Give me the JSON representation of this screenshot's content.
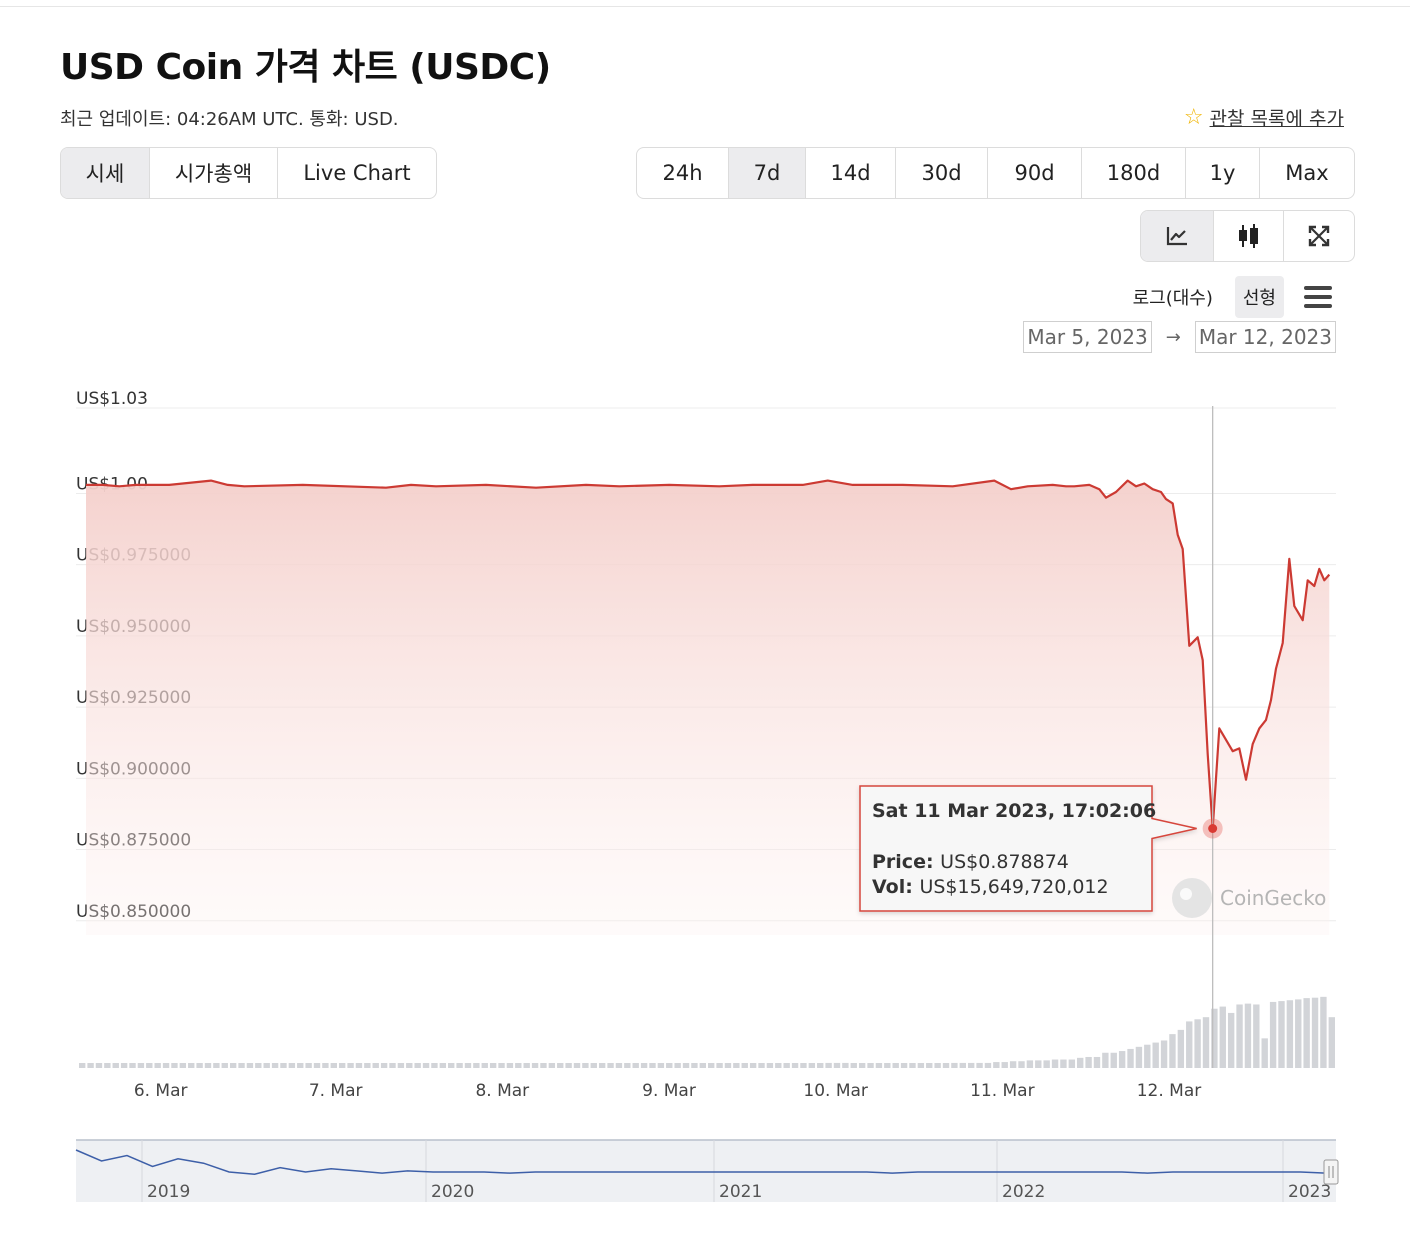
{
  "page": {
    "title": "USD Coin 가격 차트 (USDC)",
    "last_update": "최근 업데이트: 04:26AM UTC. 통화: USD.",
    "watchlist_label": "관찰 목록에 추가"
  },
  "view_tabs": [
    {
      "label": "시세",
      "active": true
    },
    {
      "label": "시가총액",
      "active": false
    },
    {
      "label": "Live Chart",
      "active": false
    }
  ],
  "range_tabs": [
    {
      "label": "24h",
      "active": false
    },
    {
      "label": "7d",
      "active": true
    },
    {
      "label": "14d",
      "active": false
    },
    {
      "label": "30d",
      "active": false
    },
    {
      "label": "90d",
      "active": false
    },
    {
      "label": "180d",
      "active": false
    },
    {
      "label": "1y",
      "active": false
    },
    {
      "label": "Max",
      "active": false
    }
  ],
  "chart_type_buttons": [
    {
      "icon": "line-chart-icon",
      "active": true
    },
    {
      "icon": "candlestick-icon",
      "active": false
    },
    {
      "icon": "expand-icon",
      "active": false
    }
  ],
  "scale": {
    "log_label": "로그(대수)",
    "linear_label": "선형",
    "active": "linear"
  },
  "date_range": {
    "from": "Mar 5, 2023",
    "to": "Mar 12, 2023",
    "arrow": "→"
  },
  "colors": {
    "line": "#cc3a33",
    "fill_top": "#f4cfcb",
    "volume": "#d2d4d8",
    "navigator": "#3d5fa8"
  },
  "watermark": "CoinGecko",
  "tooltip": {
    "date": "Sat 11 Mar 2023, 17:02:06",
    "price_label": "Price:",
    "price": "US$0.878874",
    "vol_label": "Vol:",
    "vol": "US$15,649,720,012"
  },
  "chart_data": {
    "type": "area",
    "series": [
      {
        "x": [
          5.0,
          5.1,
          5.2,
          5.3,
          5.5,
          5.75,
          5.85,
          5.95,
          6.3,
          6.8,
          6.95,
          7.1,
          7.4,
          7.7,
          8.0,
          8.2,
          8.5,
          8.8,
          9.0,
          9.3,
          9.45,
          9.6,
          9.9,
          10.2,
          10.45,
          10.55,
          10.65,
          10.8,
          10.88,
          10.93,
          11.02,
          11.08,
          11.12,
          11.18,
          11.25,
          11.3,
          11.35,
          11.4,
          11.45,
          11.48,
          11.52,
          11.55,
          11.58,
          11.62,
          11.67,
          11.7,
          11.73,
          11.76,
          11.8,
          11.84,
          11.88,
          11.92,
          11.96,
          12.0,
          12.04,
          12.08,
          12.11,
          12.14,
          12.18,
          12.22,
          12.25,
          12.3,
          12.33,
          12.37,
          12.4,
          12.43,
          12.46
        ],
        "y": [
          0.9995,
          0.9995,
          0.999,
          0.9995,
          0.9995,
          1.001,
          0.9995,
          0.999,
          0.9995,
          0.9985,
          0.9995,
          0.999,
          0.9995,
          0.9985,
          0.9995,
          0.999,
          0.9995,
          0.999,
          0.9995,
          0.9995,
          1.001,
          0.9995,
          0.9995,
          0.999,
          1.001,
          0.998,
          0.999,
          0.9995,
          0.999,
          0.999,
          0.9995,
          0.998,
          0.995,
          0.997,
          1.001,
          0.999,
          1.0,
          0.998,
          0.997,
          0.9945,
          0.993,
          0.982,
          0.977,
          0.943,
          0.946,
          0.938,
          0.905,
          0.878874,
          0.914,
          0.91,
          0.906,
          0.907,
          0.896,
          0.9085,
          0.914,
          0.917,
          0.924,
          0.935,
          0.944,
          0.9735,
          0.957,
          0.952,
          0.966,
          0.964,
          0.97,
          0.966,
          0.968
        ],
        "volume": [
          0.6,
          0.6,
          0.6,
          0.6,
          0.6,
          0.7,
          0.6,
          0.6,
          0.7,
          0.8,
          0.8,
          0.9,
          0.9,
          1.0,
          1.1,
          1.0,
          1.0,
          0.9,
          1.0,
          1.0,
          1.2,
          1.1,
          1.1,
          1.2,
          1.4,
          1.6,
          1.8,
          2.0,
          2.0,
          2.4,
          2.6,
          3.2,
          3.6,
          4.0,
          4.5,
          5.0,
          5.5,
          6.0,
          6.5,
          7.0,
          8.0,
          9.0,
          10.0,
          11.0,
          11.5,
          12.0,
          12.5,
          14.0,
          14.5,
          13.0,
          13.5,
          15.0,
          15.2,
          15.0,
          7.0,
          15.2,
          15.6,
          15.8,
          16.0,
          16.0,
          16.2,
          16.5,
          16.4,
          16.6,
          16.8,
          16.5,
          12.0
        ]
      }
    ],
    "xlabel": "",
    "ylabel": "",
    "ylim": [
      0.845,
      1.03
    ],
    "y_ticks": [
      {
        "value": 1.03,
        "label": "US$1.03"
      },
      {
        "value": 1.0,
        "label": "US$1.00"
      },
      {
        "value": 0.975,
        "label": "US$0.975000"
      },
      {
        "value": 0.95,
        "label": "US$0.950000"
      },
      {
        "value": 0.925,
        "label": "US$0.925000"
      },
      {
        "value": 0.9,
        "label": "US$0.900000"
      },
      {
        "value": 0.875,
        "label": "US$0.875000"
      },
      {
        "value": 0.85,
        "label": "US$0.850000"
      }
    ],
    "x_ticks": [
      {
        "value": 5.4,
        "label": "6. Mar"
      },
      {
        "value": 6.45,
        "label": "7. Mar"
      },
      {
        "value": 7.45,
        "label": "8. Mar"
      },
      {
        "value": 8.45,
        "label": "9. Mar"
      },
      {
        "value": 9.45,
        "label": "10. Mar"
      },
      {
        "value": 10.45,
        "label": "11. Mar"
      },
      {
        "value": 11.45,
        "label": "12. Mar"
      }
    ],
    "xlim": [
      5.0,
      12.5
    ],
    "highlight": {
      "x": 11.76,
      "y": 0.878874
    },
    "grid": true,
    "navigator": {
      "years": [
        "2019",
        "2020",
        "2021",
        "2022",
        "2023"
      ],
      "values": [
        1.02,
        1.01,
        1.015,
        1.005,
        1.012,
        1.008,
        1.0,
        0.998,
        1.004,
        1.0,
        1.003,
        1.001,
        0.999,
        1.001,
        1.0,
        1.0,
        1.0,
        0.999,
        1.0,
        1.0,
        1.0,
        1.0,
        1.0,
        1.0,
        1.0,
        1.0,
        1.0,
        1.0,
        1.0,
        1.0,
        1.0,
        1.0,
        0.999,
        1.0,
        1.0,
        1.0,
        1.0,
        1.0,
        1.0,
        1.0,
        1.0,
        1.0,
        0.999,
        1.0,
        1.0,
        1.0,
        1.0,
        1.0,
        1.0,
        0.999
      ]
    }
  }
}
